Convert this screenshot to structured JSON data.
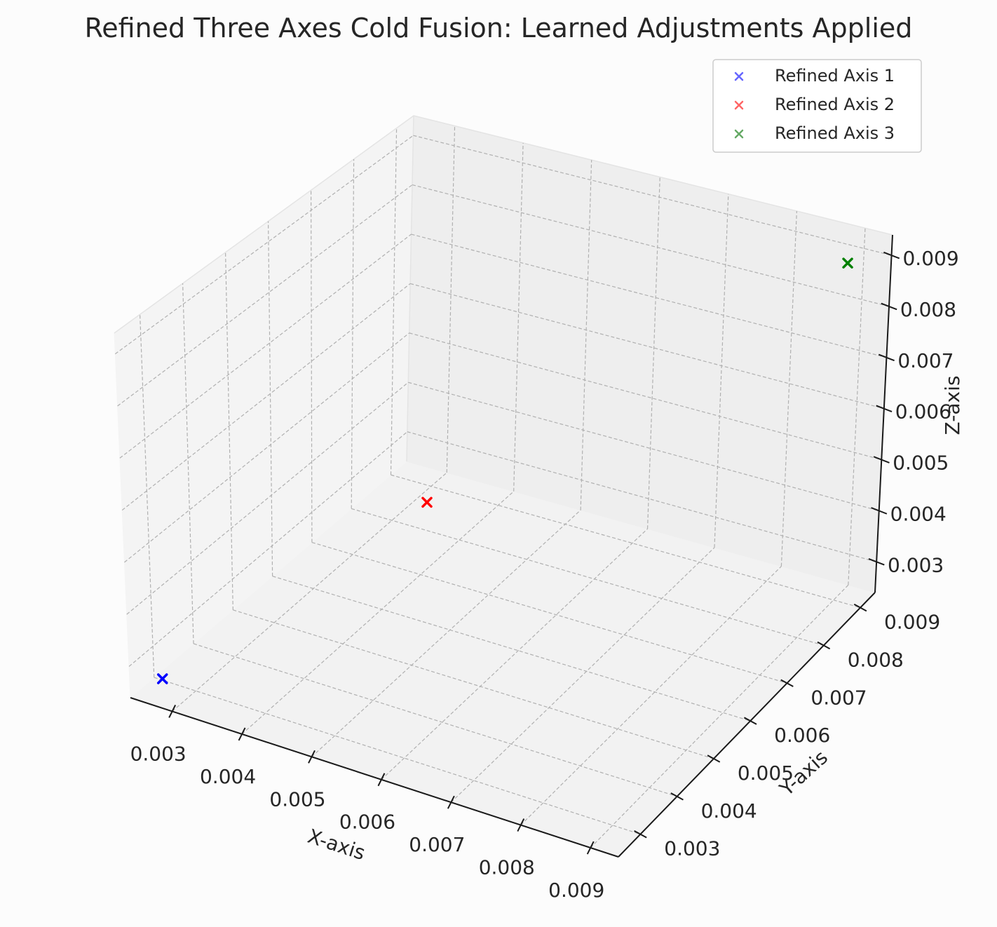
{
  "chart_data": {
    "type": "scatter",
    "title": "Refined Three Axes Cold Fusion: Learned Adjustments Applied",
    "xlabel": "X-axis",
    "ylabel": "Y-axis",
    "zlabel": "Z-axis",
    "xlim": [
      0.0024,
      0.0094
    ],
    "ylim": [
      0.0024,
      0.0094
    ],
    "zlim": [
      0.0024,
      0.0094
    ],
    "x_ticks": [
      "0.003",
      "0.004",
      "0.005",
      "0.006",
      "0.007",
      "0.008",
      "0.009"
    ],
    "y_ticks": [
      "0.003",
      "0.004",
      "0.005",
      "0.006",
      "0.007",
      "0.008",
      "0.009"
    ],
    "z_ticks": [
      "0.003",
      "0.004",
      "0.005",
      "0.006",
      "0.007",
      "0.008",
      "0.009"
    ],
    "grid": true,
    "legend_position": "top-right",
    "series": [
      {
        "name": "Refined Axis 1",
        "color": "#0000ff",
        "legend_color": "#6666ff",
        "marker": "x",
        "points": [
          {
            "x": 0.0027,
            "y": 0.0027,
            "z": 0.0027
          }
        ]
      },
      {
        "name": "Refined Axis 2",
        "color": "#ff0000",
        "legend_color": "#ff6666",
        "marker": "x",
        "points": [
          {
            "x": 0.0045,
            "y": 0.0063,
            "z": 0.0045
          }
        ]
      },
      {
        "name": "Refined Axis 3",
        "color": "#008000",
        "legend_color": "#66aa66",
        "marker": "x",
        "points": [
          {
            "x": 0.009,
            "y": 0.009,
            "z": 0.009
          }
        ]
      }
    ]
  }
}
